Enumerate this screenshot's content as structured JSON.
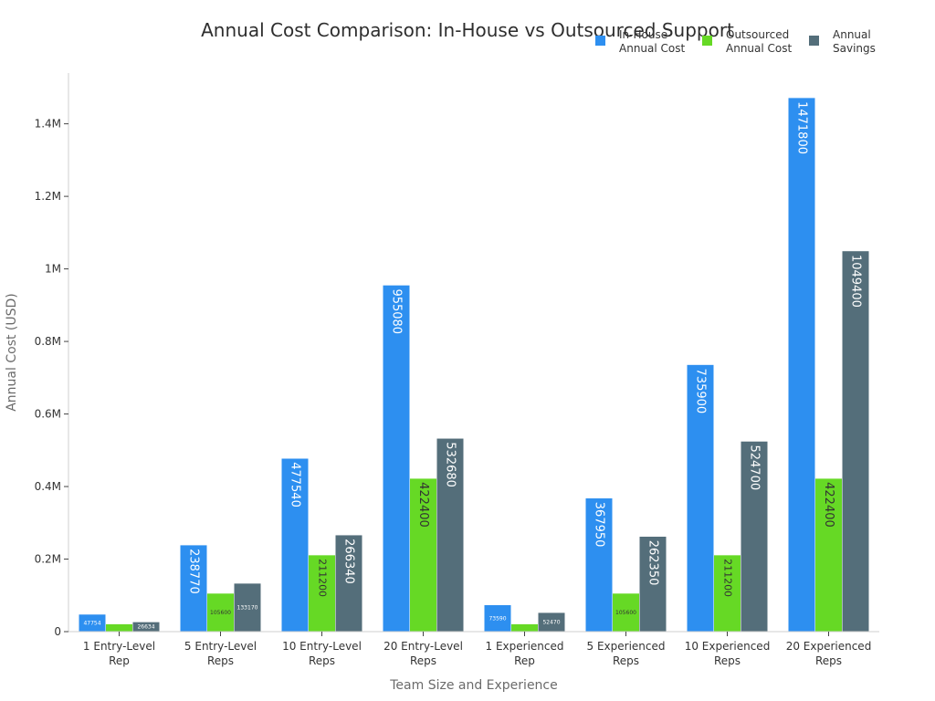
{
  "chart_data": {
    "type": "bar",
    "title": "Annual Cost Comparison: In-House vs Outsourced Support",
    "xlabel": "Team Size and Experience",
    "ylabel": "Annual Cost (USD)",
    "ylim": [
      0,
      1540000
    ],
    "yticks": [
      0,
      200000,
      400000,
      600000,
      800000,
      1000000,
      1200000,
      1400000
    ],
    "ytick_labels": [
      "0",
      "0.2M",
      "0.4M",
      "0.6M",
      "0.8M",
      "1M",
      "1.2M",
      "1.4M"
    ],
    "categories": [
      [
        "1 Entry-Level",
        "Rep"
      ],
      [
        "5 Entry-Level",
        "Reps"
      ],
      [
        "10 Entry-Level",
        "Reps"
      ],
      [
        "20 Entry-Level",
        "Reps"
      ],
      [
        "1 Experienced",
        "Rep"
      ],
      [
        "5 Experienced",
        "Reps"
      ],
      [
        "10 Experienced",
        "Reps"
      ],
      [
        "20 Experienced",
        "Reps"
      ]
    ],
    "series": [
      {
        "name": [
          "In-House",
          "Annual Cost"
        ],
        "color": "#2d8ff0",
        "values": [
          47754,
          238770,
          477540,
          955080,
          73590,
          367950,
          735900,
          1471800
        ],
        "labels": [
          "47754",
          "238770",
          "477540",
          "955080",
          "73590",
          "367950",
          "735900",
          "1471800"
        ]
      },
      {
        "name": [
          "Outsourced",
          "Annual Cost"
        ],
        "color": "#66d925",
        "values": [
          21120,
          105600,
          211200,
          422400,
          21120,
          105600,
          211200,
          422400
        ],
        "labels": [
          "",
          "105600",
          "211200",
          "422400",
          "",
          "105600",
          "211200",
          "422400"
        ]
      },
      {
        "name": [
          "Annual",
          "Savings"
        ],
        "color": "#546e7a",
        "values": [
          26634,
          133170,
          266340,
          532680,
          52470,
          262350,
          524700,
          1049400
        ],
        "labels": [
          "26634",
          "133170",
          "266340",
          "532680",
          "52470",
          "262350",
          "524700",
          "1049400"
        ]
      }
    ],
    "legend_position": "top-right",
    "grid": false
  }
}
